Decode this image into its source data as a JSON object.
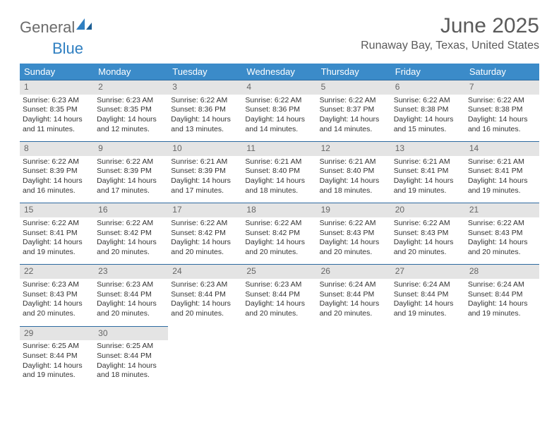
{
  "brand": {
    "part1": "General",
    "part2": "Blue"
  },
  "title": "June 2025",
  "location": "Runaway Bay, Texas, United States",
  "colors": {
    "header_bg": "#3b8bc9",
    "header_text": "#ffffff",
    "daynum_bg": "#e4e4e4",
    "daynum_text": "#666666",
    "row_border": "#2d6aa0",
    "body_text": "#333333",
    "title_text": "#5a5a5a"
  },
  "day_headers": [
    "Sunday",
    "Monday",
    "Tuesday",
    "Wednesday",
    "Thursday",
    "Friday",
    "Saturday"
  ],
  "weeks": [
    [
      {
        "n": "1",
        "sr": "Sunrise: 6:23 AM",
        "ss": "Sunset: 8:35 PM",
        "d1": "Daylight: 14 hours",
        "d2": "and 11 minutes."
      },
      {
        "n": "2",
        "sr": "Sunrise: 6:23 AM",
        "ss": "Sunset: 8:35 PM",
        "d1": "Daylight: 14 hours",
        "d2": "and 12 minutes."
      },
      {
        "n": "3",
        "sr": "Sunrise: 6:22 AM",
        "ss": "Sunset: 8:36 PM",
        "d1": "Daylight: 14 hours",
        "d2": "and 13 minutes."
      },
      {
        "n": "4",
        "sr": "Sunrise: 6:22 AM",
        "ss": "Sunset: 8:36 PM",
        "d1": "Daylight: 14 hours",
        "d2": "and 14 minutes."
      },
      {
        "n": "5",
        "sr": "Sunrise: 6:22 AM",
        "ss": "Sunset: 8:37 PM",
        "d1": "Daylight: 14 hours",
        "d2": "and 14 minutes."
      },
      {
        "n": "6",
        "sr": "Sunrise: 6:22 AM",
        "ss": "Sunset: 8:38 PM",
        "d1": "Daylight: 14 hours",
        "d2": "and 15 minutes."
      },
      {
        "n": "7",
        "sr": "Sunrise: 6:22 AM",
        "ss": "Sunset: 8:38 PM",
        "d1": "Daylight: 14 hours",
        "d2": "and 16 minutes."
      }
    ],
    [
      {
        "n": "8",
        "sr": "Sunrise: 6:22 AM",
        "ss": "Sunset: 8:39 PM",
        "d1": "Daylight: 14 hours",
        "d2": "and 16 minutes."
      },
      {
        "n": "9",
        "sr": "Sunrise: 6:22 AM",
        "ss": "Sunset: 8:39 PM",
        "d1": "Daylight: 14 hours",
        "d2": "and 17 minutes."
      },
      {
        "n": "10",
        "sr": "Sunrise: 6:21 AM",
        "ss": "Sunset: 8:39 PM",
        "d1": "Daylight: 14 hours",
        "d2": "and 17 minutes."
      },
      {
        "n": "11",
        "sr": "Sunrise: 6:21 AM",
        "ss": "Sunset: 8:40 PM",
        "d1": "Daylight: 14 hours",
        "d2": "and 18 minutes."
      },
      {
        "n": "12",
        "sr": "Sunrise: 6:21 AM",
        "ss": "Sunset: 8:40 PM",
        "d1": "Daylight: 14 hours",
        "d2": "and 18 minutes."
      },
      {
        "n": "13",
        "sr": "Sunrise: 6:21 AM",
        "ss": "Sunset: 8:41 PM",
        "d1": "Daylight: 14 hours",
        "d2": "and 19 minutes."
      },
      {
        "n": "14",
        "sr": "Sunrise: 6:21 AM",
        "ss": "Sunset: 8:41 PM",
        "d1": "Daylight: 14 hours",
        "d2": "and 19 minutes."
      }
    ],
    [
      {
        "n": "15",
        "sr": "Sunrise: 6:22 AM",
        "ss": "Sunset: 8:41 PM",
        "d1": "Daylight: 14 hours",
        "d2": "and 19 minutes."
      },
      {
        "n": "16",
        "sr": "Sunrise: 6:22 AM",
        "ss": "Sunset: 8:42 PM",
        "d1": "Daylight: 14 hours",
        "d2": "and 20 minutes."
      },
      {
        "n": "17",
        "sr": "Sunrise: 6:22 AM",
        "ss": "Sunset: 8:42 PM",
        "d1": "Daylight: 14 hours",
        "d2": "and 20 minutes."
      },
      {
        "n": "18",
        "sr": "Sunrise: 6:22 AM",
        "ss": "Sunset: 8:42 PM",
        "d1": "Daylight: 14 hours",
        "d2": "and 20 minutes."
      },
      {
        "n": "19",
        "sr": "Sunrise: 6:22 AM",
        "ss": "Sunset: 8:43 PM",
        "d1": "Daylight: 14 hours",
        "d2": "and 20 minutes."
      },
      {
        "n": "20",
        "sr": "Sunrise: 6:22 AM",
        "ss": "Sunset: 8:43 PM",
        "d1": "Daylight: 14 hours",
        "d2": "and 20 minutes."
      },
      {
        "n": "21",
        "sr": "Sunrise: 6:22 AM",
        "ss": "Sunset: 8:43 PM",
        "d1": "Daylight: 14 hours",
        "d2": "and 20 minutes."
      }
    ],
    [
      {
        "n": "22",
        "sr": "Sunrise: 6:23 AM",
        "ss": "Sunset: 8:43 PM",
        "d1": "Daylight: 14 hours",
        "d2": "and 20 minutes."
      },
      {
        "n": "23",
        "sr": "Sunrise: 6:23 AM",
        "ss": "Sunset: 8:44 PM",
        "d1": "Daylight: 14 hours",
        "d2": "and 20 minutes."
      },
      {
        "n": "24",
        "sr": "Sunrise: 6:23 AM",
        "ss": "Sunset: 8:44 PM",
        "d1": "Daylight: 14 hours",
        "d2": "and 20 minutes."
      },
      {
        "n": "25",
        "sr": "Sunrise: 6:23 AM",
        "ss": "Sunset: 8:44 PM",
        "d1": "Daylight: 14 hours",
        "d2": "and 20 minutes."
      },
      {
        "n": "26",
        "sr": "Sunrise: 6:24 AM",
        "ss": "Sunset: 8:44 PM",
        "d1": "Daylight: 14 hours",
        "d2": "and 20 minutes."
      },
      {
        "n": "27",
        "sr": "Sunrise: 6:24 AM",
        "ss": "Sunset: 8:44 PM",
        "d1": "Daylight: 14 hours",
        "d2": "and 19 minutes."
      },
      {
        "n": "28",
        "sr": "Sunrise: 6:24 AM",
        "ss": "Sunset: 8:44 PM",
        "d1": "Daylight: 14 hours",
        "d2": "and 19 minutes."
      }
    ],
    [
      {
        "n": "29",
        "sr": "Sunrise: 6:25 AM",
        "ss": "Sunset: 8:44 PM",
        "d1": "Daylight: 14 hours",
        "d2": "and 19 minutes."
      },
      {
        "n": "30",
        "sr": "Sunrise: 6:25 AM",
        "ss": "Sunset: 8:44 PM",
        "d1": "Daylight: 14 hours",
        "d2": "and 18 minutes."
      },
      null,
      null,
      null,
      null,
      null
    ]
  ]
}
